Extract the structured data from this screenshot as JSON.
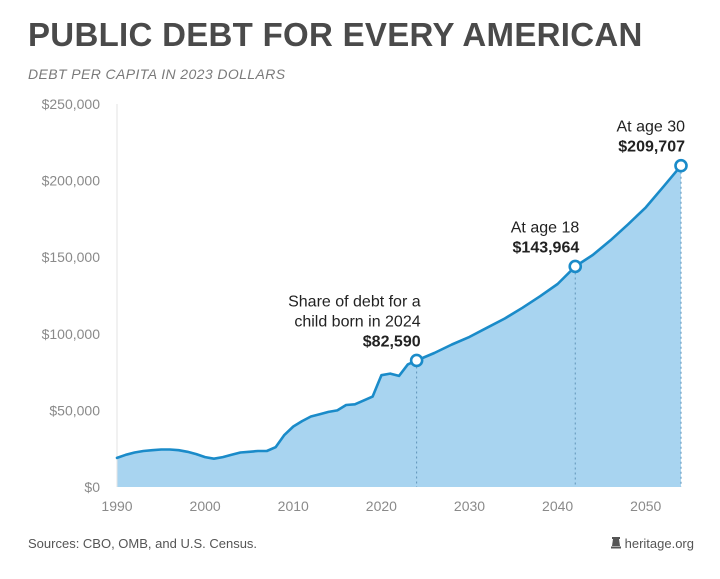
{
  "header": {
    "title": "PUBLIC DEBT FOR EVERY AMERICAN",
    "subtitle": "DEBT PER CAPITA IN 2023 DOLLARS"
  },
  "footer": {
    "sources": "Sources: CBO, OMB, and U.S. Census.",
    "brand": "heritage.org",
    "brand_icon": "heritage-bell-icon"
  },
  "colors": {
    "area_fill": "#a8d4f0",
    "line": "#1a8bc9",
    "marker_fill": "#ffffff",
    "axis_text": "#8a8a8a",
    "annotation_text": "#222222",
    "title": "#4a4a4a"
  },
  "chart_data": {
    "type": "area",
    "title": "PUBLIC DEBT FOR EVERY AMERICAN",
    "subtitle": "DEBT PER CAPITA IN 2023 DOLLARS",
    "xlabel": "",
    "ylabel": "",
    "xlim": [
      1990,
      2054
    ],
    "ylim": [
      0,
      250000
    ],
    "grid": false,
    "x_ticks": [
      1990,
      2000,
      2010,
      2020,
      2030,
      2040,
      2050
    ],
    "x_tick_labels": [
      "1990",
      "2000",
      "2010",
      "2020",
      "2030",
      "2040",
      "2050"
    ],
    "y_ticks": [
      0,
      50000,
      100000,
      150000,
      200000,
      250000
    ],
    "y_tick_labels": [
      "$0",
      "$50,000",
      "$100,000",
      "$150,000",
      "$200,000",
      "$250,000"
    ],
    "series": [
      {
        "x": [
          1990,
          1991,
          1992,
          1993,
          1994,
          1995,
          1996,
          1997,
          1998,
          1999,
          2000,
          2001,
          2002,
          2003,
          2004,
          2005,
          2006,
          2007,
          2008,
          2009,
          2010,
          2011,
          2012,
          2013,
          2014,
          2015,
          2016,
          2017,
          2018,
          2019,
          2020,
          2021,
          2022,
          2023,
          2024,
          2026,
          2028,
          2030,
          2032,
          2034,
          2036,
          2038,
          2040,
          2042,
          2044,
          2046,
          2048,
          2050,
          2052,
          2054
        ],
        "y": [
          19000,
          21000,
          22500,
          23500,
          24000,
          24500,
          24500,
          24000,
          23000,
          21500,
          19500,
          18500,
          19500,
          21000,
          22500,
          23000,
          23500,
          23500,
          26000,
          34000,
          39500,
          43000,
          46000,
          47500,
          49000,
          50000,
          53500,
          54000,
          56500,
          59000,
          73000,
          74000,
          72500,
          80000,
          82590,
          87500,
          93000,
          98000,
          104000,
          110000,
          117000,
          124500,
          132500,
          143964,
          151500,
          161000,
          171500,
          182500,
          196000,
          209707
        ]
      }
    ],
    "annotations": [
      {
        "x": 2024,
        "y": 82590,
        "lines": [
          "Share of debt for a",
          "child born in 2024"
        ],
        "value": "$82,590"
      },
      {
        "x": 2042,
        "y": 143964,
        "lines": [
          "At age 18"
        ],
        "value": "$143,964"
      },
      {
        "x": 2054,
        "y": 209707,
        "lines": [
          "At age 30"
        ],
        "value": "$209,707"
      }
    ]
  }
}
